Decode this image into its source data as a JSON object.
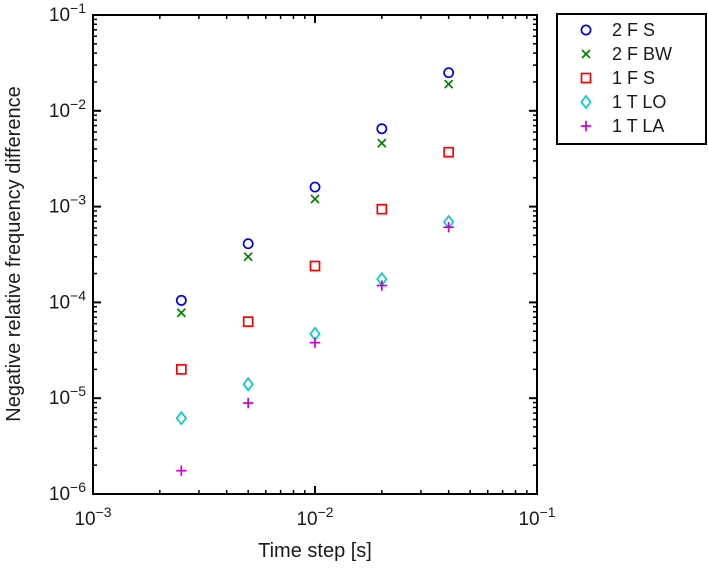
{
  "figure": {
    "background": "#ffffff",
    "axis_color": "#000000",
    "text_color": "#1a1a1a"
  },
  "chart_data": {
    "type": "scatter",
    "title": "",
    "xlabel": "Time step [s]",
    "ylabel": "Negative relative frequency difference",
    "xscale": "log",
    "yscale": "log",
    "xlim": [
      0.001,
      0.1
    ],
    "ylim": [
      1e-06,
      0.1
    ],
    "grid": false,
    "legend": {
      "position": "outside-top-right",
      "border_color": "#000000",
      "background": "#ffffff"
    },
    "x": [
      0.0025,
      0.005,
      0.01,
      0.02,
      0.04
    ],
    "series": [
      {
        "name": "2 F S",
        "marker": "circle",
        "color": "#0000EE",
        "values": [
          0.000105,
          0.00041,
          0.0016,
          0.0065,
          0.025
        ]
      },
      {
        "name": "2 F BW",
        "marker": "x",
        "color": "#008000",
        "values": [
          7.8e-05,
          0.0003,
          0.0012,
          0.0046,
          0.019
        ]
      },
      {
        "name": "1 F S",
        "marker": "square",
        "color": "#FF0000",
        "values": [
          2e-05,
          6.3e-05,
          0.00024,
          0.00094,
          0.0037
        ]
      },
      {
        "name": "1 T LO",
        "marker": "diamond",
        "color": "#00CCCC",
        "values": [
          6.2e-06,
          1.4e-05,
          4.7e-05,
          0.000175,
          0.00069
        ]
      },
      {
        "name": "1 T LA",
        "marker": "plus",
        "color": "#CC00CC",
        "values": [
          1.75e-06,
          8.9e-06,
          3.8e-05,
          0.00015,
          0.00061
        ]
      }
    ]
  }
}
